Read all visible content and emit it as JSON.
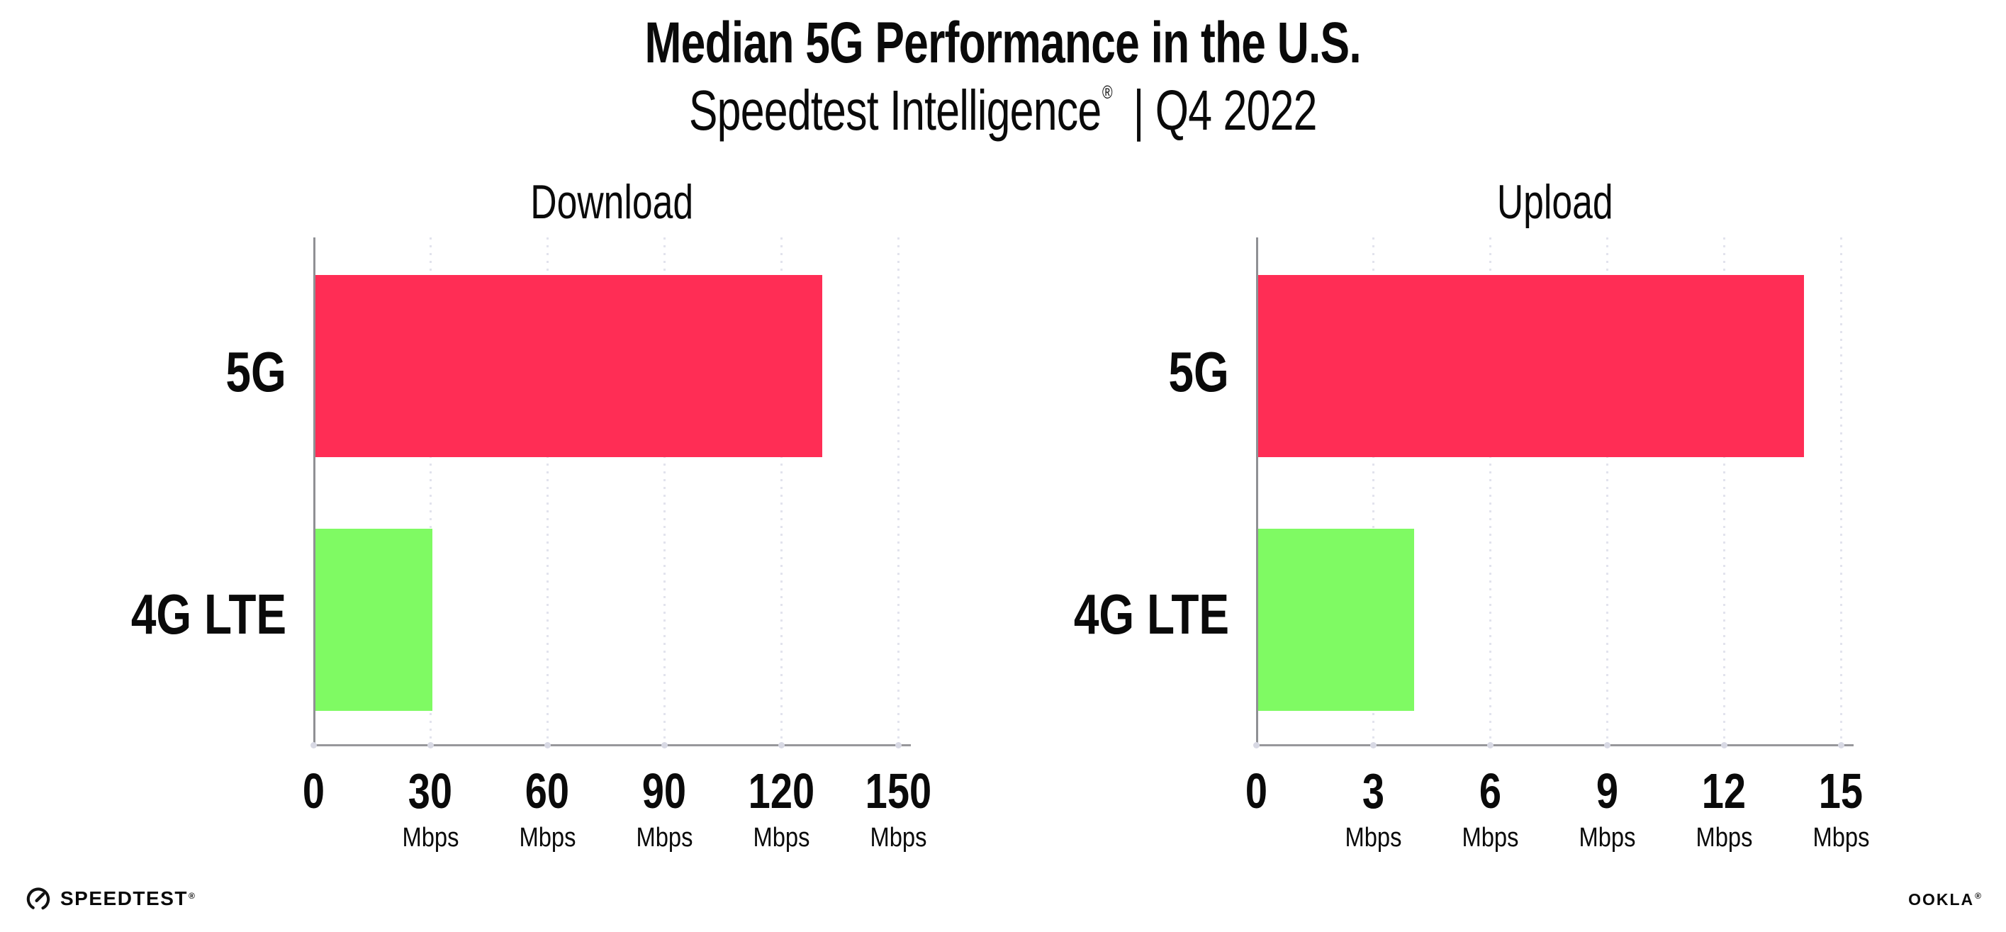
{
  "header": {
    "title": "Median 5G Performance in the U.S.",
    "subtitle": {
      "brand": "Speedtest Intelligence",
      "reg": "®",
      "rest": "| Q4 2022"
    }
  },
  "chart_data": [
    {
      "type": "bar",
      "orientation": "horizontal",
      "title": "Download",
      "categories": [
        "5G",
        "4G LTE"
      ],
      "values": [
        130,
        30
      ],
      "unit": "Mbps",
      "xlim": [
        0,
        150
      ],
      "xticks": [
        0,
        30,
        60,
        90,
        120,
        150
      ],
      "colors": [
        "#FF2D55",
        "#7FFA63"
      ],
      "grid": "vertical-dotted",
      "legend": "none"
    },
    {
      "type": "bar",
      "orientation": "horizontal",
      "title": "Upload",
      "categories": [
        "5G",
        "4G LTE"
      ],
      "values": [
        14,
        4
      ],
      "unit": "Mbps",
      "xlim": [
        0,
        15
      ],
      "xticks": [
        0,
        3,
        6,
        9,
        12,
        15
      ],
      "colors": [
        "#FF2D55",
        "#7FFA63"
      ],
      "grid": "vertical-dotted",
      "legend": "none"
    }
  ],
  "colors": {
    "bar_5g": "#FF2D55",
    "bar_4g_lte": "#7FFA63",
    "axis": "#8f9094",
    "gridline": "#e2e3ed",
    "text": "#0a0a0a"
  },
  "icons": {
    "speedtest_gauge_icon": "circular speed gauge with needle"
  },
  "footer": {
    "speedtest_wordmark": "SPEEDTEST",
    "speedtest_mark": "®",
    "ookla_wordmark": "OOKLA",
    "ookla_mark": "®"
  }
}
